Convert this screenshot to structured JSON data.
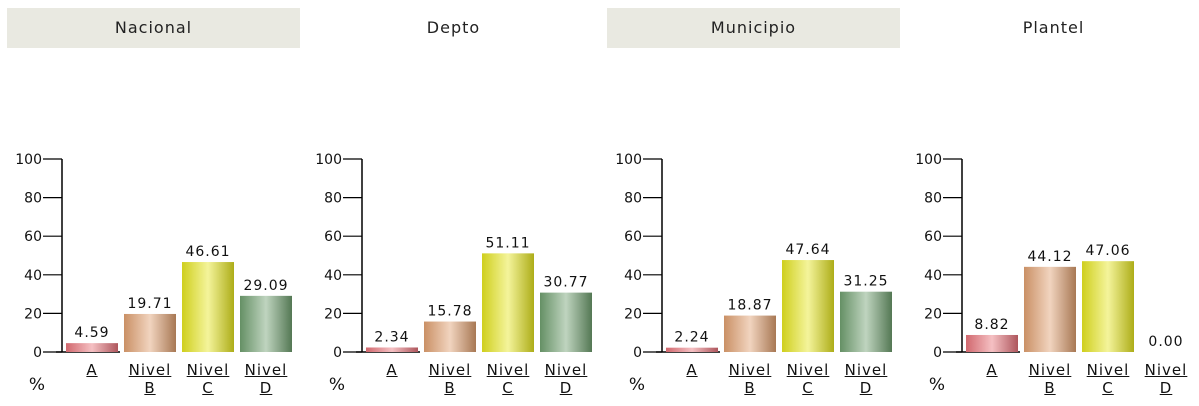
{
  "chart_data": [
    {
      "type": "bar",
      "title": "Nacional",
      "unit_label": "%",
      "categories": [
        "A",
        "Nivel B",
        "Nivel C",
        "Nivel D"
      ],
      "values": [
        4.59,
        19.71,
        46.61,
        29.09
      ],
      "value_labels": [
        "4.59",
        "19.71",
        "46.61",
        "29.09"
      ],
      "colors": [
        "#e8737a",
        "#e0a070",
        "#e6e620",
        "#70a070"
      ],
      "ylim": [
        0,
        100
      ],
      "yticks": [
        0,
        20,
        40,
        60,
        80,
        100
      ]
    },
    {
      "type": "bar",
      "title": "Depto",
      "unit_label": "%",
      "categories": [
        "A",
        "Nivel B",
        "Nivel C",
        "Nivel D"
      ],
      "values": [
        2.34,
        15.78,
        51.11,
        30.77
      ],
      "value_labels": [
        "2.34",
        "15.78",
        "51.11",
        "30.77"
      ],
      "colors": [
        "#e8737a",
        "#e0a070",
        "#e6e620",
        "#70a070"
      ],
      "ylim": [
        0,
        100
      ],
      "yticks": [
        0,
        20,
        40,
        60,
        80,
        100
      ]
    },
    {
      "type": "bar",
      "title": "Municipio",
      "unit_label": "%",
      "categories": [
        "A",
        "Nivel B",
        "Nivel C",
        "Nivel D"
      ],
      "values": [
        2.24,
        18.87,
        47.64,
        31.25
      ],
      "value_labels": [
        "2.24",
        "18.87",
        "47.64",
        "31.25"
      ],
      "colors": [
        "#e8737a",
        "#e0a070",
        "#e6e620",
        "#70a070"
      ],
      "ylim": [
        0,
        100
      ],
      "yticks": [
        0,
        20,
        40,
        60,
        80,
        100
      ]
    },
    {
      "type": "bar",
      "title": "Plantel",
      "unit_label": "%",
      "categories": [
        "A",
        "Nivel B",
        "Nivel C",
        "Nivel D"
      ],
      "values": [
        8.82,
        44.12,
        47.06,
        0
      ],
      "value_labels": [
        "8.82",
        "44.12",
        "47.06",
        "0.00"
      ],
      "colors": [
        "#e8737a",
        "#e0a070",
        "#e6e620",
        "#70a070"
      ],
      "ylim": [
        0,
        100
      ],
      "yticks": [
        0,
        20,
        40,
        60,
        80,
        100
      ]
    }
  ]
}
